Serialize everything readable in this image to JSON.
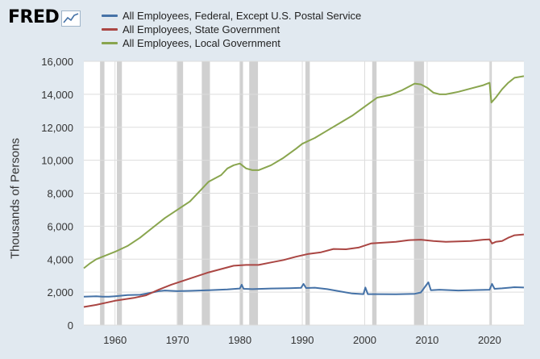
{
  "header": {
    "logo_text": "FRED",
    "logo_icon": "line-chart-icon"
  },
  "colors": {
    "background": "#e1e9f0",
    "plot_background": "#ffffff",
    "grid": "#dddddd",
    "recession": "#c8c8c8",
    "federal": "#4572a7",
    "state": "#aa4643",
    "local": "#89a54e"
  },
  "chart_data": {
    "type": "line",
    "title": "",
    "xlabel": "",
    "ylabel": "Thousands of Persons",
    "xlim": [
      1955.0,
      2025.5
    ],
    "ylim": [
      0,
      16000
    ],
    "x_ticks": [
      1960,
      1970,
      1980,
      1990,
      2000,
      2010,
      2020
    ],
    "y_ticks": [
      0,
      2000,
      4000,
      6000,
      8000,
      10000,
      12000,
      14000,
      16000
    ],
    "y_tick_labels": [
      "0",
      "2,000",
      "4,000",
      "6,000",
      "8,000",
      "10,000",
      "12,000",
      "14,000",
      "16,000"
    ],
    "grid": true,
    "legend_position": "top",
    "recessions": [
      [
        1957.6,
        1958.3
      ],
      [
        1960.3,
        1961.1
      ],
      [
        1969.9,
        1970.9
      ],
      [
        1973.9,
        1975.2
      ],
      [
        1980.0,
        1980.5
      ],
      [
        1981.5,
        1982.9
      ],
      [
        1990.5,
        1991.2
      ],
      [
        2001.2,
        2001.9
      ],
      [
        2007.9,
        2009.5
      ],
      [
        2020.1,
        2020.3
      ]
    ],
    "series": [
      {
        "name": "All Employees, Federal, Except U.S. Postal Service",
        "color": "#4572a7",
        "points": [
          [
            1955,
            1720
          ],
          [
            1957,
            1750
          ],
          [
            1958,
            1720
          ],
          [
            1959,
            1720
          ],
          [
            1960,
            1750
          ],
          [
            1962,
            1820
          ],
          [
            1964,
            1840
          ],
          [
            1966,
            1980
          ],
          [
            1967,
            2060
          ],
          [
            1968,
            2100
          ],
          [
            1970,
            2060
          ],
          [
            1972,
            2080
          ],
          [
            1975,
            2120
          ],
          [
            1978,
            2170
          ],
          [
            1980,
            2220
          ],
          [
            1980.3,
            2450
          ],
          [
            1980.6,
            2200
          ],
          [
            1982,
            2180
          ],
          [
            1985,
            2220
          ],
          [
            1988,
            2240
          ],
          [
            1989.8,
            2260
          ],
          [
            1990.2,
            2500
          ],
          [
            1990.6,
            2250
          ],
          [
            1992,
            2270
          ],
          [
            1994,
            2180
          ],
          [
            1996,
            2050
          ],
          [
            1998,
            1920
          ],
          [
            1999.8,
            1880
          ],
          [
            2000.1,
            2280
          ],
          [
            2000.5,
            1880
          ],
          [
            2002,
            1880
          ],
          [
            2005,
            1870
          ],
          [
            2008,
            1900
          ],
          [
            2009,
            1980
          ],
          [
            2010.2,
            2600
          ],
          [
            2010.6,
            2120
          ],
          [
            2012,
            2150
          ],
          [
            2015,
            2100
          ],
          [
            2018,
            2130
          ],
          [
            2020.0,
            2150
          ],
          [
            2020.4,
            2500
          ],
          [
            2020.8,
            2200
          ],
          [
            2022,
            2230
          ],
          [
            2024,
            2300
          ],
          [
            2025.5,
            2280
          ]
        ]
      },
      {
        "name": "All Employees, State Government",
        "color": "#aa4643",
        "points": [
          [
            1955,
            1100
          ],
          [
            1957,
            1230
          ],
          [
            1960,
            1480
          ],
          [
            1963,
            1650
          ],
          [
            1965,
            1810
          ],
          [
            1967,
            2150
          ],
          [
            1969,
            2450
          ],
          [
            1971,
            2700
          ],
          [
            1973,
            2950
          ],
          [
            1975,
            3200
          ],
          [
            1977,
            3400
          ],
          [
            1979,
            3600
          ],
          [
            1981,
            3650
          ],
          [
            1983,
            3650
          ],
          [
            1985,
            3800
          ],
          [
            1987,
            3950
          ],
          [
            1989,
            4150
          ],
          [
            1991,
            4320
          ],
          [
            1993,
            4420
          ],
          [
            1995,
            4620
          ],
          [
            1997,
            4600
          ],
          [
            1999,
            4700
          ],
          [
            2001,
            4950
          ],
          [
            2003,
            5000
          ],
          [
            2005,
            5050
          ],
          [
            2007,
            5150
          ],
          [
            2009,
            5180
          ],
          [
            2011,
            5100
          ],
          [
            2013,
            5050
          ],
          [
            2015,
            5080
          ],
          [
            2017,
            5100
          ],
          [
            2019,
            5180
          ],
          [
            2020.0,
            5200
          ],
          [
            2020.4,
            4950
          ],
          [
            2021,
            5050
          ],
          [
            2022,
            5100
          ],
          [
            2023,
            5300
          ],
          [
            2024,
            5450
          ],
          [
            2025.5,
            5500
          ]
        ]
      },
      {
        "name": "All Employees, Local Government",
        "color": "#89a54e",
        "points": [
          [
            1955,
            3450
          ],
          [
            1956,
            3750
          ],
          [
            1957,
            4000
          ],
          [
            1958,
            4150
          ],
          [
            1960,
            4450
          ],
          [
            1962,
            4800
          ],
          [
            1964,
            5300
          ],
          [
            1966,
            5900
          ],
          [
            1968,
            6500
          ],
          [
            1970,
            7000
          ],
          [
            1972,
            7500
          ],
          [
            1974,
            8300
          ],
          [
            1975,
            8700
          ],
          [
            1976,
            8900
          ],
          [
            1977,
            9100
          ],
          [
            1978,
            9500
          ],
          [
            1979,
            9700
          ],
          [
            1980,
            9800
          ],
          [
            1981,
            9500
          ],
          [
            1982,
            9400
          ],
          [
            1983,
            9400
          ],
          [
            1985,
            9700
          ],
          [
            1987,
            10150
          ],
          [
            1989,
            10700
          ],
          [
            1990,
            11000
          ],
          [
            1992,
            11350
          ],
          [
            1994,
            11800
          ],
          [
            1996,
            12250
          ],
          [
            1998,
            12700
          ],
          [
            2000,
            13250
          ],
          [
            2002,
            13800
          ],
          [
            2004,
            13950
          ],
          [
            2006,
            14250
          ],
          [
            2008,
            14650
          ],
          [
            2009,
            14600
          ],
          [
            2010,
            14400
          ],
          [
            2011,
            14100
          ],
          [
            2012,
            14000
          ],
          [
            2013,
            14000
          ],
          [
            2015,
            14150
          ],
          [
            2017,
            14350
          ],
          [
            2019,
            14550
          ],
          [
            2020.0,
            14700
          ],
          [
            2020.3,
            13500
          ],
          [
            2021,
            13800
          ],
          [
            2022,
            14300
          ],
          [
            2023,
            14700
          ],
          [
            2024,
            15000
          ],
          [
            2025.5,
            15100
          ]
        ]
      }
    ]
  }
}
